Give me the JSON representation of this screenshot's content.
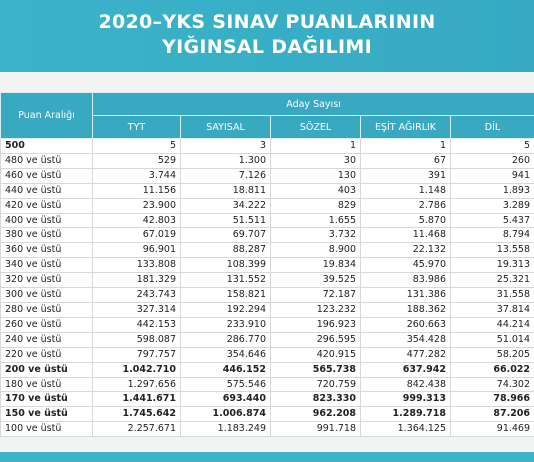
{
  "header": {
    "title": [
      "2020–YKS SINAV PUANLARININ",
      "YIĞINSAL DAĞILIMI"
    ]
  },
  "table": {
    "row_header": "Puan Aralığı",
    "group_header": "Aday Sayısı",
    "columns": [
      "TYT",
      "SAYISAL",
      "SÖZEL",
      "EŞİT AĞIRLIK",
      "DİL"
    ],
    "rows": [
      [
        "500",
        "5",
        "3",
        "1",
        "1",
        "5"
      ],
      [
        "480 ve üstü",
        "529",
        "1.300",
        "30",
        "67",
        "260"
      ],
      [
        "460 ve üstü",
        "3.744",
        "7.126",
        "130",
        "391",
        "941"
      ],
      [
        "440 ve üstü",
        "11.156",
        "18.811",
        "403",
        "1.148",
        "1.893"
      ],
      [
        "420 ve üstü",
        "23.900",
        "34.222",
        "829",
        "2.786",
        "3.289"
      ],
      [
        "400 ve üstü",
        "42.803",
        "51.511",
        "1.655",
        "5.870",
        "5.437"
      ],
      [
        "380 ve üstü",
        "67.019",
        "69.707",
        "3.732",
        "11.468",
        "8.794"
      ],
      [
        "360 ve üstü",
        "96.901",
        "88.287",
        "8.900",
        "22.132",
        "13.558"
      ],
      [
        "340 ve üstü",
        "133.808",
        "108.399",
        "19.834",
        "45.970",
        "19.313"
      ],
      [
        "320 ve üstü",
        "181.329",
        "131.552",
        "39.525",
        "83.986",
        "25.321"
      ],
      [
        "300 ve üstü",
        "243.743",
        "158.821",
        "72.187",
        "131.386",
        "31.558"
      ],
      [
        "280 ve üstü",
        "327.314",
        "192.294",
        "123.232",
        "188.362",
        "37.814"
      ],
      [
        "260 ve üstü",
        "442.153",
        "233.910",
        "196.923",
        "260.663",
        "44.214"
      ],
      [
        "240 ve üstü",
        "598.087",
        "286.770",
        "296.595",
        "354.428",
        "51.014"
      ],
      [
        "220 ve üstü",
        "797.757",
        "354.646",
        "420.915",
        "477.282",
        "58.205"
      ],
      [
        "200 ve üstü",
        "1.042.710",
        "446.152",
        "565.738",
        "637.942",
        "66.022"
      ],
      [
        "180 ve üstü",
        "1.297.656",
        "575.546",
        "720.759",
        "842.438",
        "74.302"
      ],
      [
        "170 ve üstü",
        "1.441.671",
        "693.440",
        "823.330",
        "999.313",
        "78.966"
      ],
      [
        "150 ve üstü",
        "1.745.642",
        "1.006.874",
        "962.208",
        "1.289.718",
        "87.206"
      ],
      [
        "100 ve üstü",
        "2.257.671",
        "1.183.249",
        "991.718",
        "1.364.125",
        "91.469"
      ]
    ]
  }
}
